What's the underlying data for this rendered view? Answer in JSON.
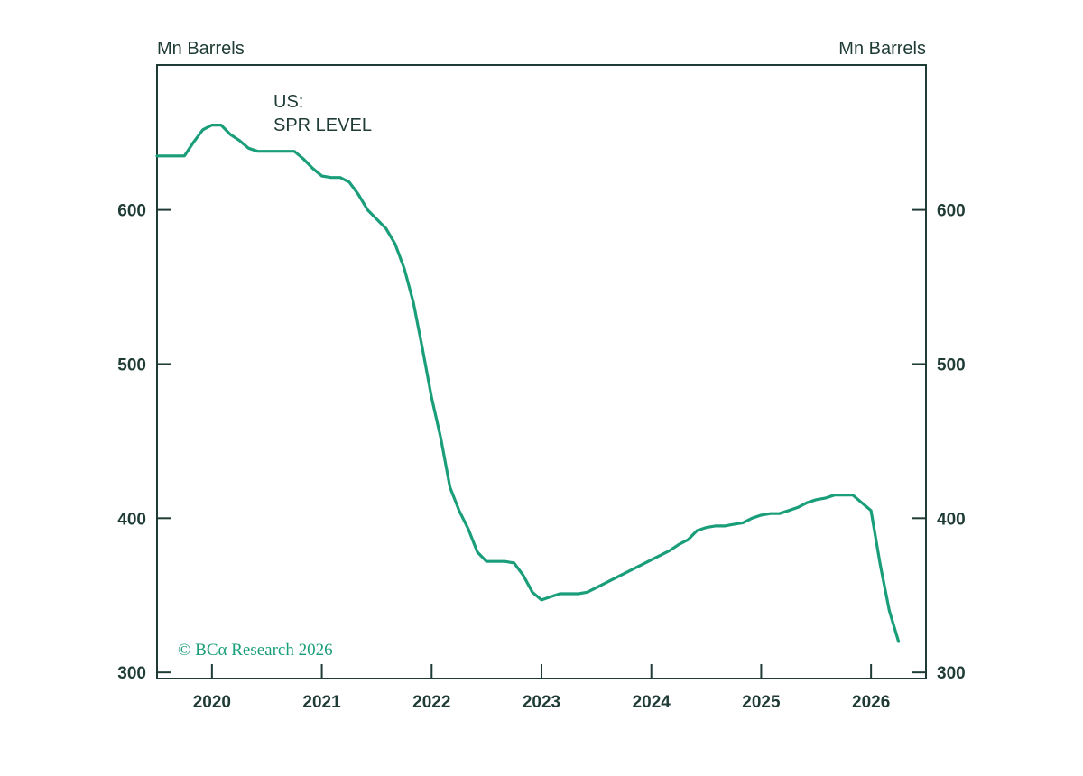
{
  "chart_data": {
    "type": "line",
    "title_lines": [
      "US:",
      "SPR LEVEL"
    ],
    "ylabel_left": "Mn Barrels",
    "ylabel_right": "Mn Barrels",
    "ylim": [
      296,
      694
    ],
    "yticks": [
      300,
      400,
      500,
      600
    ],
    "x_tick_labels": [
      "2020",
      "2021",
      "2022",
      "2023",
      "2024",
      "2025",
      "2026"
    ],
    "xlim": [
      "2019-07",
      "2026-07"
    ],
    "grid": false,
    "copyright": "© BCα Research 2026",
    "colors": {
      "line": "#1a9e7a",
      "axis": "#1f3b36"
    },
    "series": [
      {
        "x": [
          "2019-07",
          "2019-10",
          "2019-11",
          "2019-12",
          "2020-01",
          "2020-02",
          "2020-03",
          "2020-04",
          "2020-05",
          "2020-06",
          "2020-07",
          "2020-08",
          "2020-09",
          "2020-10",
          "2020-11",
          "2020-12",
          "2021-01",
          "2021-02",
          "2021-03",
          "2021-04",
          "2021-05",
          "2021-06",
          "2021-07",
          "2021-08",
          "2021-09",
          "2021-10",
          "2021-11",
          "2021-12",
          "2022-01",
          "2022-02",
          "2022-03",
          "2022-04",
          "2022-05",
          "2022-06",
          "2022-07",
          "2022-08",
          "2022-09",
          "2022-10",
          "2022-11",
          "2022-12",
          "2023-01",
          "2023-02",
          "2023-03",
          "2023-04",
          "2023-05",
          "2023-06",
          "2023-07",
          "2023-08",
          "2023-09",
          "2023-10",
          "2023-11",
          "2023-12",
          "2024-01",
          "2024-02",
          "2024-03",
          "2024-04",
          "2024-05",
          "2024-06",
          "2024-07",
          "2024-08",
          "2024-09",
          "2024-10",
          "2024-11",
          "2024-12",
          "2025-01",
          "2025-02",
          "2025-03",
          "2025-04",
          "2025-05",
          "2025-06",
          "2025-07",
          "2025-08",
          "2025-09",
          "2025-10",
          "2025-11",
          "2026-01",
          "2026-02",
          "2026-03",
          "2026-04"
        ],
        "y": [
          635,
          635,
          644,
          652,
          655,
          655,
          649,
          645,
          640,
          638,
          638,
          638,
          638,
          638,
          633,
          627,
          622,
          621,
          621,
          618,
          610,
          600,
          594,
          588,
          578,
          562,
          540,
          510,
          478,
          452,
          420,
          405,
          393,
          378,
          372,
          372,
          372,
          371,
          363,
          352,
          347,
          349,
          351,
          351,
          351,
          352,
          355,
          358,
          361,
          364,
          367,
          370,
          373,
          376,
          379,
          383,
          386,
          392,
          394,
          395,
          395,
          396,
          397,
          400,
          402,
          403,
          403,
          405,
          407,
          410,
          412,
          413,
          415,
          415,
          415,
          405,
          370,
          340,
          320
        ]
      }
    ]
  }
}
